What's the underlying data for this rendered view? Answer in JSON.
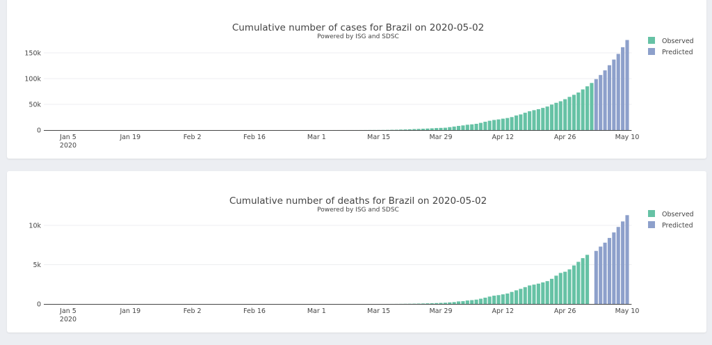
{
  "colors": {
    "observed": "#66c2a5",
    "predicted": "#8da0cb"
  },
  "chart_data": [
    {
      "type": "bar",
      "title": "Cumulative number of cases for Brazil on 2020-05-02",
      "subtitle": "Powered by ISG and SDSC",
      "xlim": [
        "2019-12-31",
        "2020-05-11"
      ],
      "ylim": [
        0,
        180000
      ],
      "x_ticks": [
        "Jan 5",
        "Jan 19",
        "Feb 2",
        "Feb 16",
        "Mar 1",
        "Mar 15",
        "Mar 29",
        "Apr 12",
        "Apr 26",
        "May 10"
      ],
      "x_tick_dates": [
        "2020-01-05",
        "2020-01-19",
        "2020-02-02",
        "2020-02-16",
        "2020-03-01",
        "2020-03-15",
        "2020-03-29",
        "2020-04-12",
        "2020-04-26",
        "2020-05-10"
      ],
      "x_year_label": "2020",
      "y_ticks": [
        {
          "value": 0,
          "label": "0"
        },
        {
          "value": 50000,
          "label": "50k"
        },
        {
          "value": 100000,
          "label": "100k"
        },
        {
          "value": 150000,
          "label": "150k"
        }
      ],
      "grid": true,
      "legend_position": "right",
      "series": [
        {
          "name": "Observed",
          "start_date": "2020-02-26",
          "values": [
            1,
            1,
            1,
            2,
            2,
            2,
            2,
            3,
            8,
            13,
            19,
            25,
            25,
            34,
            52,
            77,
            151,
            151,
            200,
            234,
            346,
            529,
            640,
            970,
            1178,
            1546,
            1924,
            2247,
            2554,
            2985,
            3417,
            3904,
            4256,
            4579,
            5717,
            6836,
            8044,
            9056,
            10360,
            11130,
            12161,
            14034,
            16170,
            18092,
            19638,
            20727,
            22169,
            23430,
            25262,
            28320,
            30425,
            33682,
            36599,
            38654,
            40581,
            43079,
            45757,
            49492,
            52995,
            56000,
            60000,
            64500,
            68500,
            73000,
            79000,
            85000,
            91500
          ]
        },
        {
          "name": "Predicted",
          "start_date": "2020-05-03",
          "values": [
            99000,
            107000,
            116000,
            126000,
            137000,
            148000,
            161000,
            175000
          ]
        }
      ]
    },
    {
      "type": "bar",
      "title": "Cumulative number of deaths for Brazil on 2020-05-02",
      "subtitle": "Powered by ISG and SDSC",
      "xlim": [
        "2019-12-31",
        "2020-05-11"
      ],
      "ylim": [
        0,
        11800
      ],
      "x_ticks": [
        "Jan 5",
        "Jan 19",
        "Feb 2",
        "Feb 16",
        "Mar 1",
        "Mar 15",
        "Mar 29",
        "Apr 12",
        "Apr 26",
        "May 10"
      ],
      "x_tick_dates": [
        "2020-01-05",
        "2020-01-19",
        "2020-02-02",
        "2020-02-16",
        "2020-03-01",
        "2020-03-15",
        "2020-03-29",
        "2020-04-12",
        "2020-04-26",
        "2020-05-10"
      ],
      "x_year_label": "2020",
      "y_ticks": [
        {
          "value": 0,
          "label": "0"
        },
        {
          "value": 5000,
          "label": "5k"
        },
        {
          "value": 10000,
          "label": "10k"
        }
      ],
      "grid": true,
      "legend_position": "right",
      "series": [
        {
          "name": "Observed",
          "start_date": "2020-03-17",
          "values": [
            1,
            4,
            7,
            11,
            18,
            25,
            34,
            46,
            59,
            77,
            92,
            111,
            136,
            159,
            201,
            240,
            324,
            359,
            445,
            486,
            553,
            667,
            800,
            941,
            1056,
            1124,
            1223,
            1328,
            1532,
            1736,
            1924,
            2141,
            2354,
            2462,
            2587,
            2741,
            2906,
            3200,
            3600,
            3950,
            4100,
            4400,
            4900,
            5360,
            5830,
            6250
          ]
        },
        {
          "name": "Predicted",
          "start_date": "2020-05-03",
          "values": [
            6750,
            7300,
            7800,
            8400,
            9100,
            9800,
            10500,
            11300
          ]
        }
      ]
    }
  ]
}
